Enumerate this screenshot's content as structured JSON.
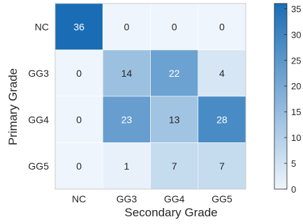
{
  "chart_data": {
    "type": "heatmap",
    "xlabel": "Secondary Grade",
    "ylabel": "Primary Grade",
    "x_categories": [
      "NC",
      "GG3",
      "GG4",
      "GG5"
    ],
    "y_categories": [
      "NC",
      "GG3",
      "GG4",
      "GG5"
    ],
    "values": [
      [
        36,
        0,
        0,
        0
      ],
      [
        0,
        14,
        22,
        4
      ],
      [
        0,
        23,
        13,
        28
      ],
      [
        0,
        1,
        7,
        7
      ]
    ],
    "colorbar": {
      "range": [
        0,
        36
      ],
      "ticks": [
        "0",
        "5",
        "10",
        "15",
        "20",
        "25",
        "30",
        "35"
      ],
      "low_color": "#eef5fc",
      "high_color": "#1a6db5"
    },
    "grid": false
  }
}
